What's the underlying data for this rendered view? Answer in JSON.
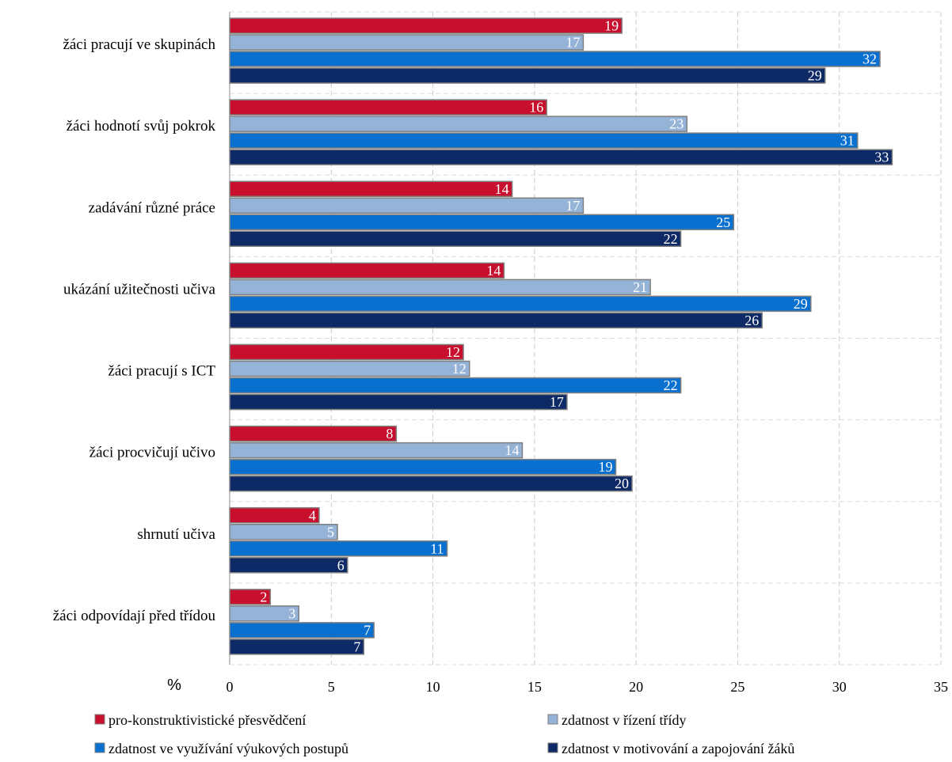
{
  "chart_data": {
    "type": "bar",
    "orientation": "horizontal",
    "xunit": "%",
    "xlim": [
      0,
      35
    ],
    "xticks": [
      "0",
      "5",
      "10",
      "15",
      "20",
      "25",
      "30",
      "35"
    ],
    "grid": true,
    "legend_position": "bottom",
    "categories": [
      "žáci pracují ve skupinách",
      "žáci hodnotí svůj pokrok",
      "zadávání různé práce",
      "ukázání užitečnosti učiva",
      "žáci pracují s ICT",
      "žáci procvičují učivo",
      "shrnutí učiva",
      "žáci odpovídají před třídou"
    ],
    "series": [
      {
        "name": "pro-konstruktivistické přesvědčení",
        "color": "#c8102e",
        "values": [
          19.3,
          15.6,
          13.9,
          13.5,
          11.5,
          8.2,
          4.4,
          2.0
        ],
        "labels": [
          "19",
          "16",
          "14",
          "14",
          "12",
          "8",
          "4",
          "2"
        ]
      },
      {
        "name": "zdatnost v řízení třídy",
        "color": "#95b3d7",
        "values": [
          17.4,
          22.5,
          17.4,
          20.7,
          11.8,
          14.4,
          5.3,
          3.4
        ],
        "labels": [
          "17",
          "23",
          "17",
          "21",
          "12",
          "14",
          "5",
          "3"
        ]
      },
      {
        "name": "zdatnost ve využívání výukových postupů",
        "color": "#0a70cf",
        "values": [
          32.0,
          30.9,
          24.8,
          28.6,
          22.2,
          19.0,
          10.7,
          7.1
        ],
        "labels": [
          "32",
          "31",
          "25",
          "29",
          "22",
          "19",
          "11",
          "7"
        ]
      },
      {
        "name": "zdatnost v motivování a zapojování žáků",
        "color": "#0e2a66",
        "values": [
          29.3,
          32.6,
          22.2,
          26.2,
          16.6,
          19.8,
          5.8,
          6.6
        ],
        "labels": [
          "29",
          "33",
          "22",
          "26",
          "17",
          "20",
          "6",
          "7"
        ]
      }
    ]
  }
}
